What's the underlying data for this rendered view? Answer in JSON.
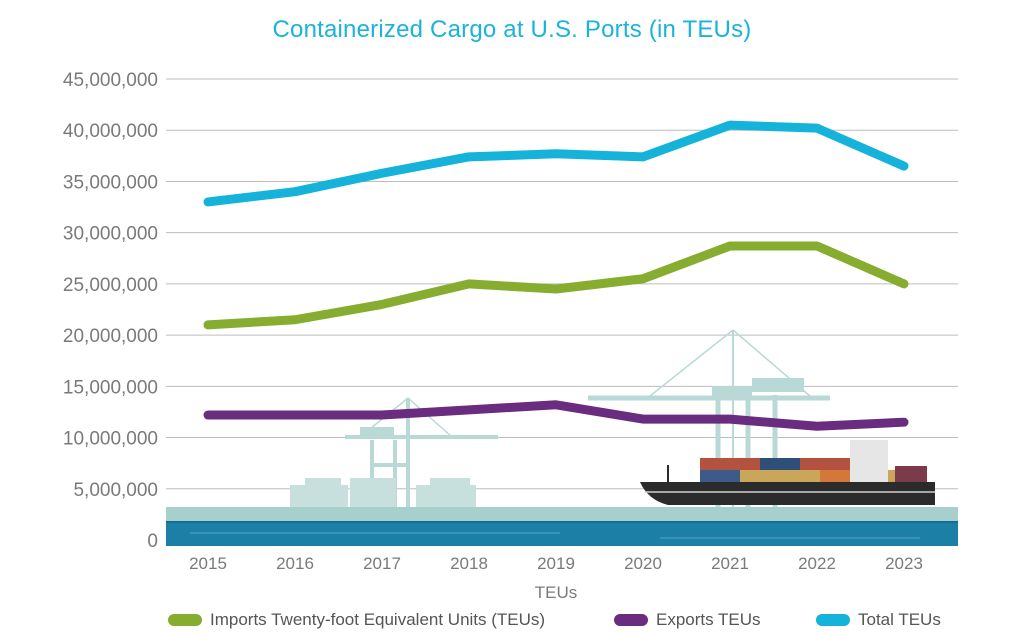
{
  "chart_data": {
    "type": "line",
    "title": "Containerized Cargo at U.S. Ports (in TEUs)",
    "xlabel": "TEUs",
    "ylabel": "",
    "categories": [
      "2015",
      "2016",
      "2017",
      "2018",
      "2019",
      "2020",
      "2021",
      "2022",
      "2023"
    ],
    "ylim": [
      0,
      45000000
    ],
    "yticks": [
      "0",
      "5,000,000",
      "10,000,000",
      "15,000,000",
      "20,000,000",
      "25,000,000",
      "30,000,000",
      "35,000,000",
      "40,000,000",
      "45,000,000"
    ],
    "grid": true,
    "legend_position": "bottom",
    "series": [
      {
        "name": "Imports Twenty-foot Equivalent Units (TEUs)",
        "color": "#86ad2f",
        "values": [
          21000000,
          21500000,
          23000000,
          25000000,
          24500000,
          25500000,
          28700000,
          28700000,
          25000000
        ]
      },
      {
        "name": "Exports TEUs",
        "color": "#6a2c7e",
        "values": [
          12200000,
          12200000,
          12200000,
          12700000,
          13200000,
          11800000,
          11800000,
          11100000,
          11500000
        ]
      },
      {
        "name": "Total TEUs",
        "color": "#15b2da",
        "values": [
          33000000,
          34000000,
          35800000,
          37400000,
          37700000,
          37400000,
          40500000,
          40200000,
          36500000
        ]
      }
    ]
  },
  "illustration": {
    "name": "port-scene-illustration",
    "colors": {
      "water": "#1b7fa6",
      "dock": "#a7cfcc",
      "crane": "#b9d9d6",
      "ship_hull": "#2b2b2b"
    }
  }
}
